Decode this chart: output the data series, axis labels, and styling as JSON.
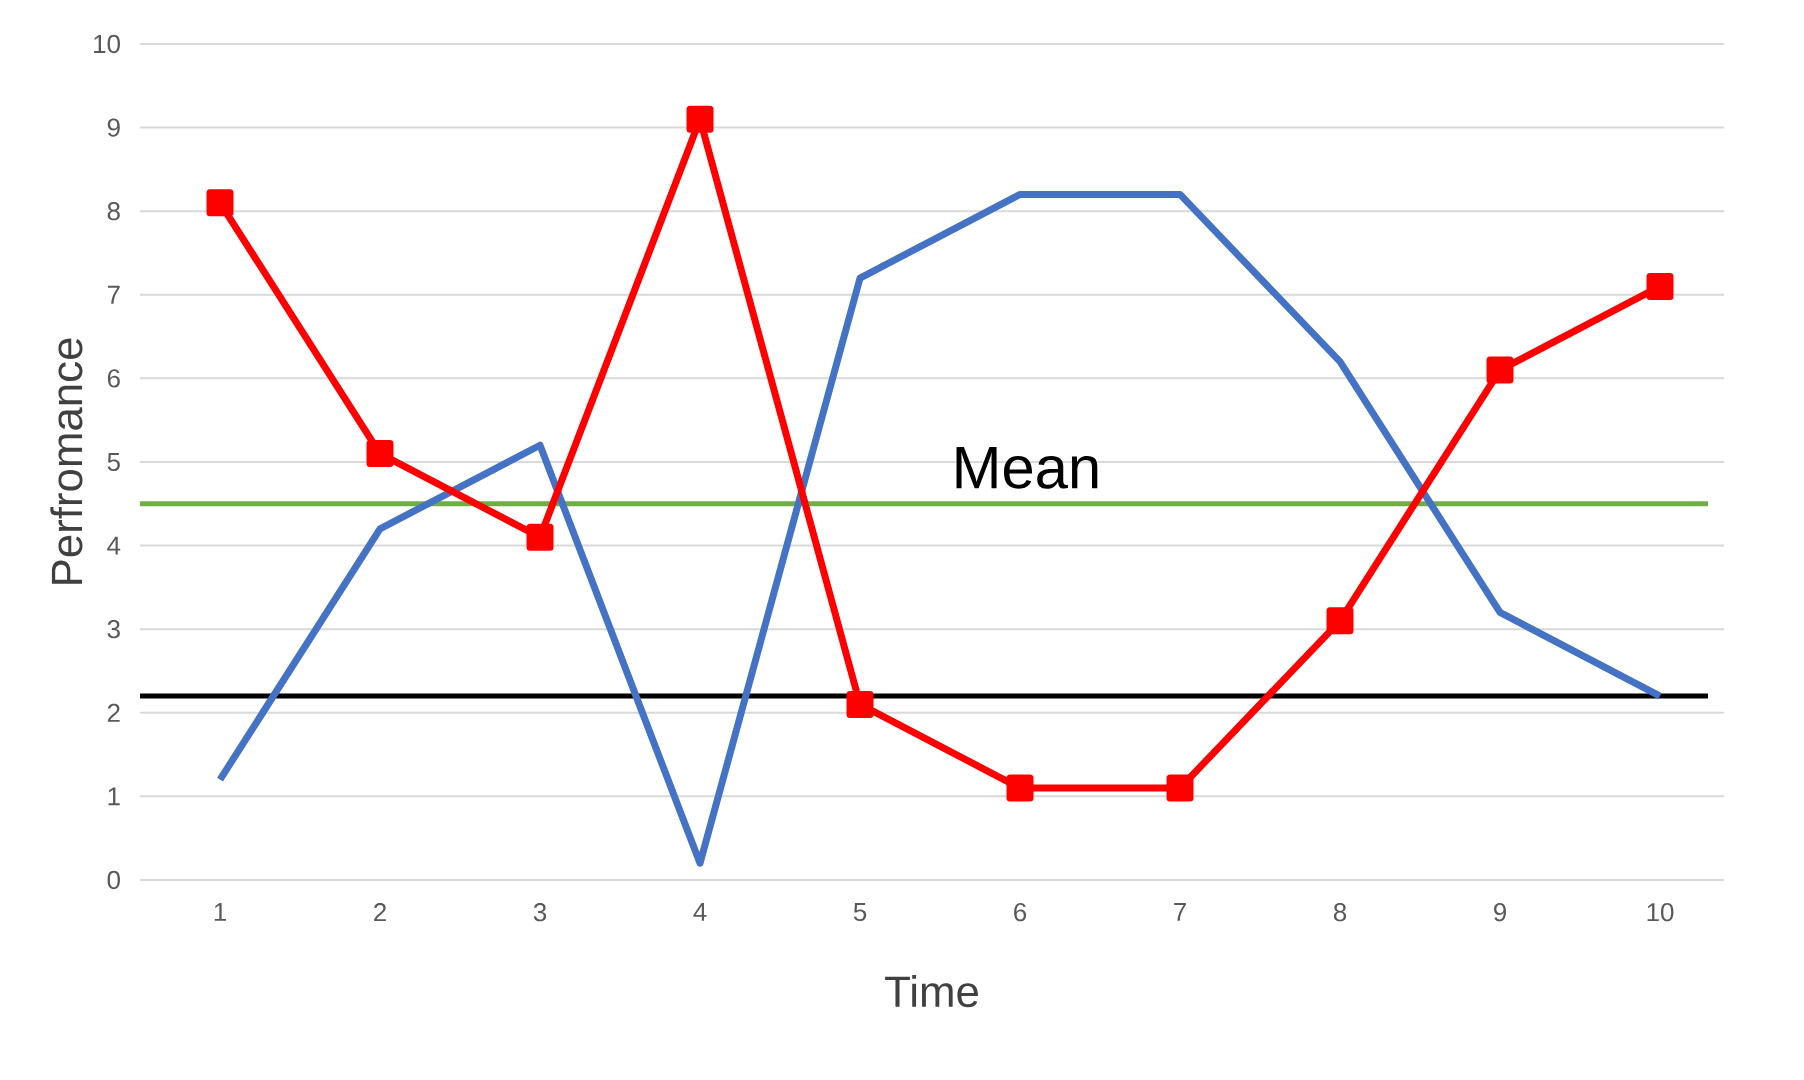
{
  "chart_data": {
    "type": "line",
    "xlabel": "Time",
    "ylabel": "Perfromance",
    "categories": [
      "1",
      "2",
      "3",
      "4",
      "5",
      "6",
      "7",
      "8",
      "9",
      "10"
    ],
    "series": [
      {
        "color": "#4472c4",
        "values": [
          1.2,
          4.2,
          5.2,
          0.2,
          7.2,
          8.2,
          8.2,
          6.2,
          3.2,
          2.2
        ]
      },
      {
        "color": "#ff0000",
        "marker": "square",
        "values": [
          8.1,
          5.1,
          4.1,
          9.1,
          2.1,
          1.1,
          1.1,
          3.1,
          6.1,
          7.1
        ]
      }
    ],
    "ylim": [
      0,
      10
    ],
    "yticks": [
      0,
      1,
      2,
      3,
      4,
      5,
      6,
      7,
      8,
      9,
      10
    ],
    "grid": "y",
    "ref_lines": [
      {
        "axis": "y",
        "value": 4.5,
        "label": "Mean",
        "color": "#70ad47"
      },
      {
        "axis": "y",
        "value": 2.2,
        "color": "#000000"
      }
    ]
  }
}
